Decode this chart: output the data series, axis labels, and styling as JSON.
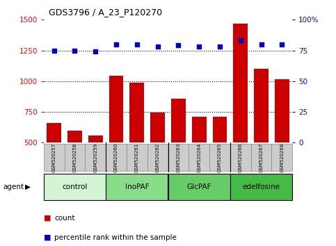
{
  "title": "GDS3796 / A_23_P120270",
  "samples": [
    "GSM520257",
    "GSM520258",
    "GSM520259",
    "GSM520260",
    "GSM520261",
    "GSM520262",
    "GSM520263",
    "GSM520264",
    "GSM520265",
    "GSM520266",
    "GSM520267",
    "GSM520268"
  ],
  "counts": [
    660,
    600,
    560,
    1045,
    985,
    745,
    860,
    710,
    710,
    1470,
    1100,
    1015
  ],
  "percentiles": [
    75,
    75,
    74,
    80,
    80,
    78,
    79,
    78,
    78,
    83,
    80,
    80
  ],
  "groups": [
    {
      "label": "control",
      "start": 0,
      "end": 3,
      "color": "#d4f5d4"
    },
    {
      "label": "InoPAF",
      "start": 3,
      "end": 6,
      "color": "#88dd88"
    },
    {
      "label": "GlcPAF",
      "start": 6,
      "end": 9,
      "color": "#66cc66"
    },
    {
      "label": "edelfosine",
      "start": 9,
      "end": 12,
      "color": "#44bb44"
    }
  ],
  "bar_color": "#cc0000",
  "dot_color": "#0000cc",
  "left_ylim": [
    500,
    1500
  ],
  "left_yticks": [
    500,
    750,
    1000,
    1250,
    1500
  ],
  "right_ylim": [
    0,
    100
  ],
  "right_yticks": [
    0,
    25,
    50,
    75,
    100
  ],
  "right_yticklabels": [
    "0",
    "25",
    "50",
    "75",
    "100%"
  ],
  "hlines": [
    750,
    1000,
    1250
  ],
  "agent_label": "agent",
  "legend_count_label": "count",
  "legend_pct_label": "percentile rank within the sample",
  "bg_color": "#ffffff",
  "sample_box_color": "#cccccc",
  "sample_box_edge": "#888888"
}
